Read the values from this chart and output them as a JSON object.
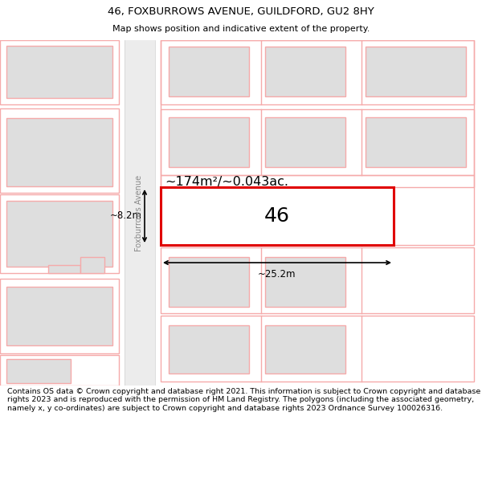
{
  "title": "46, FOXBURROWS AVENUE, GUILDFORD, GU2 8HY",
  "subtitle": "Map shows position and indicative extent of the property.",
  "footer": "Contains OS data © Crown copyright and database right 2021. This information is subject to Crown copyright and database rights 2023 and is reproduced with the permission of HM Land Registry. The polygons (including the associated geometry, namely x, y co-ordinates) are subject to Crown copyright and database rights 2023 Ordnance Survey 100026316.",
  "bg_color": "#ffffff",
  "building_fill": "#dedede",
  "edge_pink": "#f5aaaa",
  "edge_red": "#e00000",
  "title_fontsize": 9.5,
  "subtitle_fontsize": 8.0,
  "footer_fontsize": 6.8,
  "road_label": "Foxburrows Avenue",
  "number_label": "46",
  "area_label": "~174m²/~0.043ac.",
  "width_label": "~25.2m",
  "height_label": "~8.2m"
}
